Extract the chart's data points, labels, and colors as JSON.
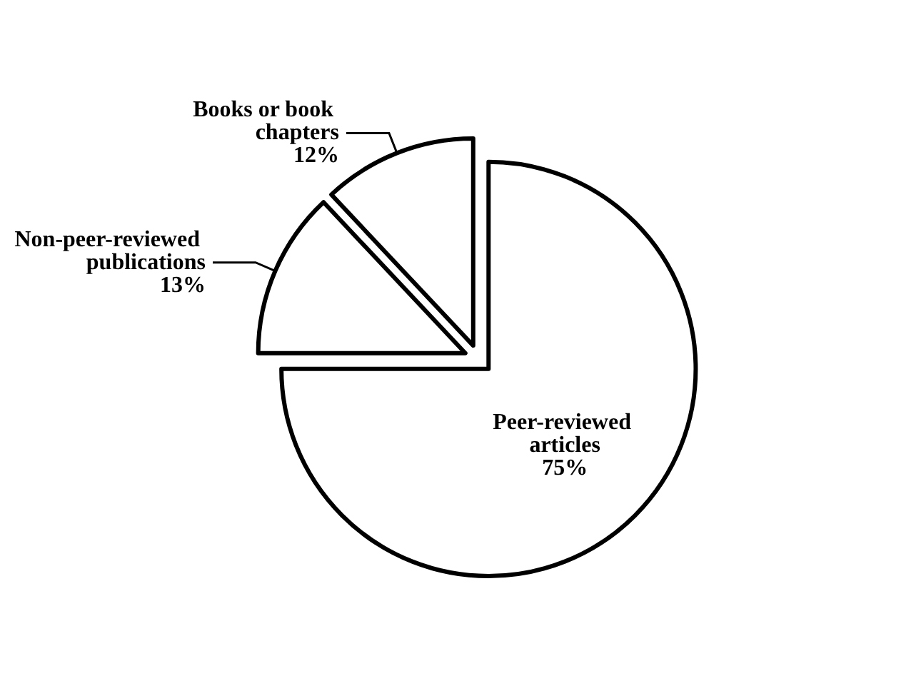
{
  "chart_data": {
    "type": "pie",
    "categories": [
      "Peer-reviewed articles",
      "Non-peer-reviewed publications",
      "Books or book chapters"
    ],
    "values": [
      75,
      13,
      12
    ],
    "colors": [
      "#ffffff",
      "#ffffff",
      "#ffffff"
    ],
    "value_labels": [
      "75%",
      "13%",
      "12%"
    ]
  }
}
